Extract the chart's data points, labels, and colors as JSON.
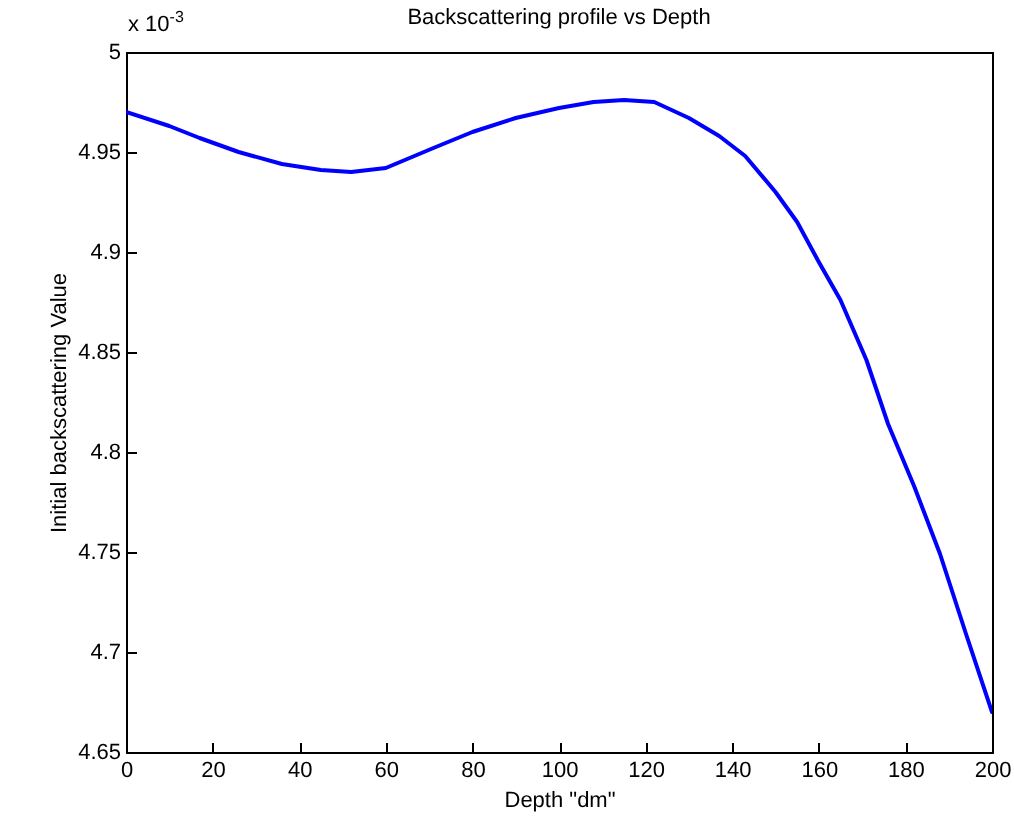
{
  "chart_data": {
    "type": "line",
    "title": "Backscattering profile vs Depth",
    "xlabel": "Depth \"dm\"",
    "ylabel": "Initial backscattering Value",
    "annotations": [
      "x 10$^{-3}$"
    ],
    "x": [
      0,
      10,
      17,
      26,
      36,
      45,
      52,
      60,
      71,
      80,
      90,
      100,
      108,
      115,
      122,
      130,
      137,
      143,
      150,
      155,
      160,
      165,
      171,
      176,
      182,
      188,
      194,
      200
    ],
    "series": [
      {
        "color": "#0000ff",
        "values": [
          4.97,
          4.963,
          4.957,
          4.95,
          4.944,
          4.941,
          4.94,
          4.942,
          4.952,
          4.96,
          4.967,
          4.972,
          4.975,
          4.976,
          4.975,
          4.967,
          4.958,
          4.948,
          4.93,
          4.915,
          4.895,
          4.876,
          4.846,
          4.814,
          4.783,
          4.749,
          4.709,
          4.67
        ]
      }
    ],
    "xlim": [
      0,
      200
    ],
    "xticks": [
      0,
      20,
      40,
      60,
      80,
      100,
      120,
      140,
      160,
      180,
      200
    ],
    "ylim": [
      4.65,
      5
    ],
    "yticks": [
      4.65,
      4.7,
      4.75,
      4.8,
      4.85,
      4.9,
      4.95,
      5
    ],
    "grid": false,
    "marker": "none",
    "line_style": "solid"
  }
}
